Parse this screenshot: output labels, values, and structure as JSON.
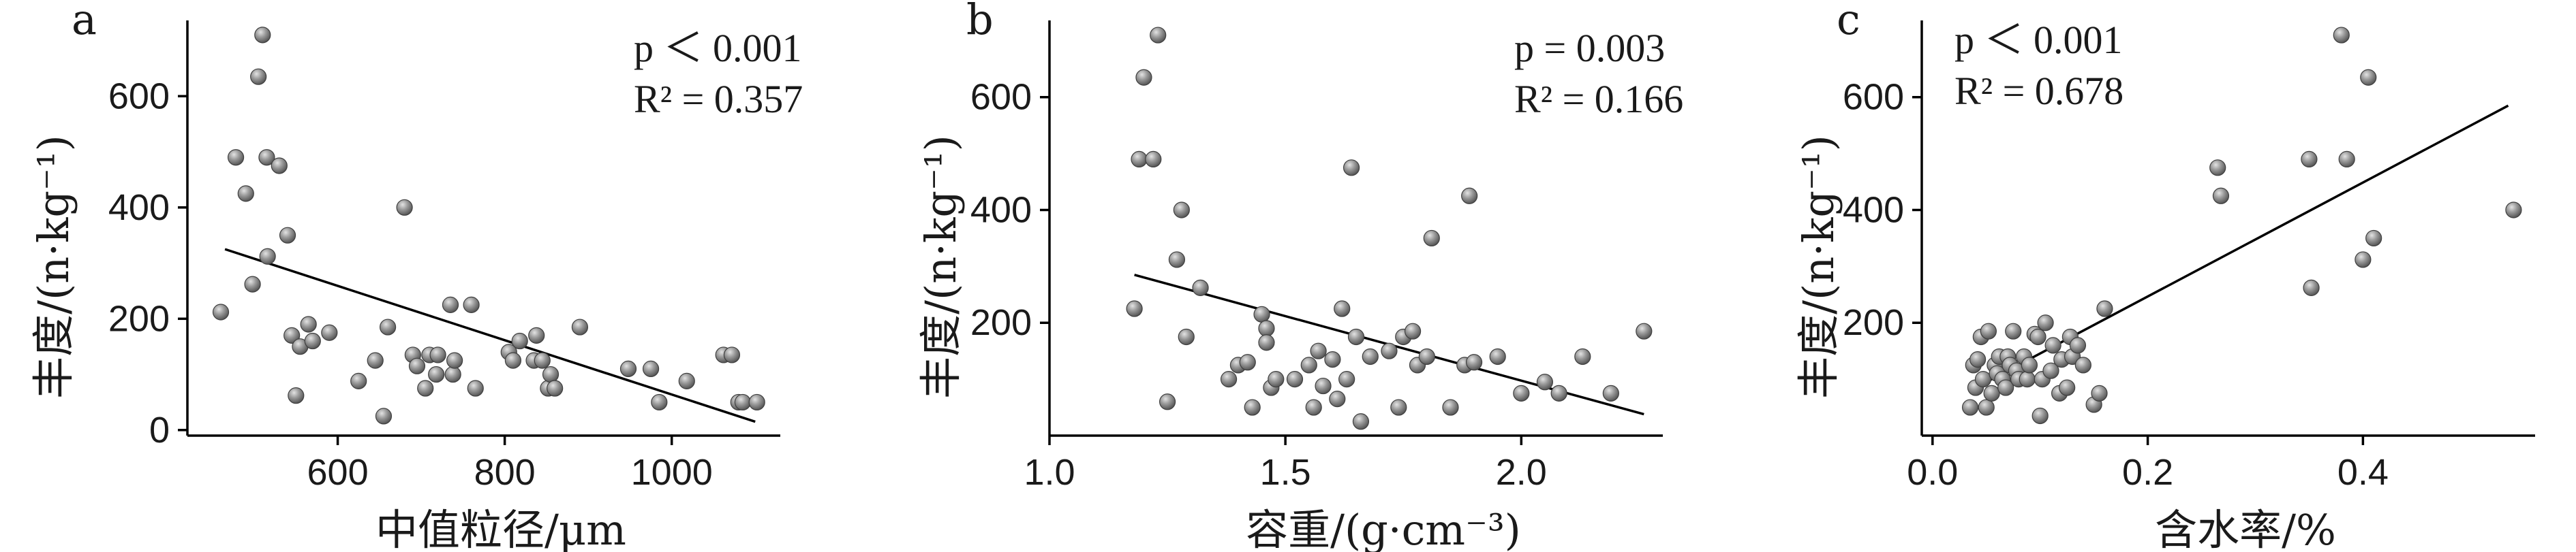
{
  "chart_data": [
    {
      "type": "scatter",
      "panel_label": "a",
      "xlabel": "中值粒径/μm",
      "ylabel": "丰度/(n·kg⁻¹)",
      "xticks": [
        600,
        800,
        1000
      ],
      "yticks": [
        0,
        200,
        400,
        600
      ],
      "xlim": [
        420,
        1130
      ],
      "ylim": [
        -10,
        730
      ],
      "stats": {
        "p": "p ＜ 0.001",
        "r2": "R² = 0.357"
      },
      "regression": {
        "x": [
          465,
          1100
        ],
        "y": [
          325,
          15
        ]
      },
      "points": {
        "x": [
          460,
          478,
          490,
          498,
          505,
          510,
          515,
          516,
          530,
          540,
          545,
          550,
          555,
          565,
          570,
          590,
          625,
          645,
          655,
          660,
          680,
          690,
          695,
          705,
          710,
          718,
          720,
          735,
          738,
          740,
          760,
          765,
          805,
          810,
          818,
          835,
          838,
          845,
          852,
          855,
          860,
          890,
          948,
          975,
          985,
          1018,
          1062,
          1072,
          1080,
          1085,
          1102
        ],
        "y": [
          212,
          490,
          425,
          262,
          635,
          710,
          490,
          312,
          475,
          350,
          170,
          62,
          150,
          190,
          160,
          175,
          88,
          125,
          25,
          185,
          400,
          135,
          115,
          75,
          135,
          100,
          135,
          225,
          100,
          125,
          225,
          75,
          140,
          125,
          160,
          125,
          170,
          125,
          75,
          100,
          75,
          185,
          110,
          110,
          50,
          88,
          135,
          135,
          50,
          50,
          50
        ]
      }
    },
    {
      "type": "scatter",
      "panel_label": "b",
      "xlabel": "容重/(g·cm⁻³)",
      "ylabel": "丰度/(n·kg⁻¹)",
      "xticks": [
        "1.0",
        "1.5",
        "2.0"
      ],
      "xtick_values": [
        1.0,
        1.5,
        2.0
      ],
      "yticks": [
        200,
        400,
        600
      ],
      "xlim": [
        1.0,
        2.3
      ],
      "ylim": [
        0,
        730
      ],
      "stats": {
        "p": "p = 0.003",
        "r2": "R² = 0.166"
      },
      "regression": {
        "x": [
          1.18,
          2.26
        ],
        "y": [
          285,
          38
        ]
      },
      "points": {
        "x": [
          1.18,
          1.19,
          1.2,
          1.22,
          1.23,
          1.25,
          1.27,
          1.28,
          1.29,
          1.32,
          1.38,
          1.4,
          1.42,
          1.43,
          1.45,
          1.46,
          1.46,
          1.47,
          1.48,
          1.52,
          1.55,
          1.56,
          1.57,
          1.58,
          1.6,
          1.61,
          1.62,
          1.63,
          1.64,
          1.65,
          1.66,
          1.68,
          1.72,
          1.74,
          1.75,
          1.77,
          1.78,
          1.8,
          1.81,
          1.85,
          1.88,
          1.89,
          1.9,
          1.95,
          2.0,
          2.05,
          2.08,
          2.13,
          2.19,
          2.26
        ],
        "y": [
          225,
          490,
          635,
          490,
          710,
          60,
          312,
          400,
          175,
          262,
          100,
          125,
          130,
          50,
          215,
          190,
          165,
          85,
          100,
          100,
          125,
          50,
          150,
          88,
          135,
          65,
          225,
          100,
          475,
          175,
          25,
          140,
          150,
          50,
          175,
          185,
          125,
          140,
          350,
          50,
          125,
          425,
          130,
          140,
          75,
          95,
          75,
          140,
          75,
          185
        ]
      }
    },
    {
      "type": "scatter",
      "panel_label": "c",
      "xlabel": "含水率/%",
      "ylabel": "丰度/(n·kg⁻¹)",
      "xticks": [
        "0.0",
        "0.2",
        "0.4"
      ],
      "xtick_values": [
        0.0,
        0.2,
        0.4
      ],
      "yticks": [
        200,
        400,
        600
      ],
      "xlim": [
        -0.01,
        0.56
      ],
      "ylim": [
        0,
        730
      ],
      "stats": {
        "p": "p ＜ 0.001",
        "r2": "R² = 0.678"
      },
      "regression": {
        "x": [
          0.04,
          0.535
        ],
        "y": [
          85,
          585
        ]
      },
      "points": {
        "x": [
          0.035,
          0.038,
          0.04,
          0.042,
          0.045,
          0.047,
          0.05,
          0.052,
          0.055,
          0.058,
          0.06,
          0.062,
          0.065,
          0.068,
          0.07,
          0.072,
          0.075,
          0.078,
          0.08,
          0.085,
          0.088,
          0.09,
          0.095,
          0.098,
          0.1,
          0.102,
          0.105,
          0.11,
          0.112,
          0.118,
          0.12,
          0.125,
          0.128,
          0.13,
          0.135,
          0.14,
          0.15,
          0.155,
          0.16,
          0.265,
          0.268,
          0.35,
          0.352,
          0.38,
          0.385,
          0.4,
          0.405,
          0.41,
          0.54
        ],
        "y": [
          50,
          125,
          85,
          135,
          175,
          100,
          50,
          185,
          75,
          125,
          110,
          140,
          100,
          85,
          140,
          125,
          185,
          115,
          100,
          140,
          100,
          125,
          180,
          175,
          35,
          100,
          200,
          115,
          160,
          75,
          135,
          85,
          175,
          140,
          160,
          125,
          55,
          75,
          225,
          475,
          425,
          490,
          262,
          710,
          490,
          312,
          635,
          350,
          400
        ]
      }
    }
  ]
}
